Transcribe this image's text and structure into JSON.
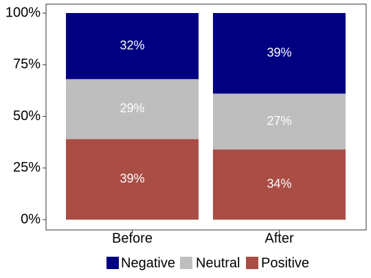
{
  "chart_data": {
    "type": "bar",
    "stacked": true,
    "normalized": true,
    "categories": [
      "Before",
      "After"
    ],
    "series": [
      {
        "name": "Positive",
        "values": [
          39,
          34
        ],
        "labels": [
          "39%",
          "34%"
        ],
        "color": "#a94d45"
      },
      {
        "name": "Neutral",
        "values": [
          29,
          27
        ],
        "labels": [
          "29%",
          "27%"
        ],
        "color": "#bebebe"
      },
      {
        "name": "Negative",
        "values": [
          32,
          39
        ],
        "labels": [
          "32%",
          "39%"
        ],
        "color": "#000080"
      }
    ],
    "legend_order": [
      "Negative",
      "Neutral",
      "Positive"
    ],
    "ylim": [
      0,
      100
    ],
    "yticks": [
      0,
      25,
      50,
      75,
      100
    ],
    "ytick_labels": [
      "0%",
      "25%",
      "50%",
      "75%",
      "100%"
    ],
    "grid": false,
    "legend_position": "bottom",
    "title": "",
    "xlabel": "",
    "ylabel": ""
  }
}
